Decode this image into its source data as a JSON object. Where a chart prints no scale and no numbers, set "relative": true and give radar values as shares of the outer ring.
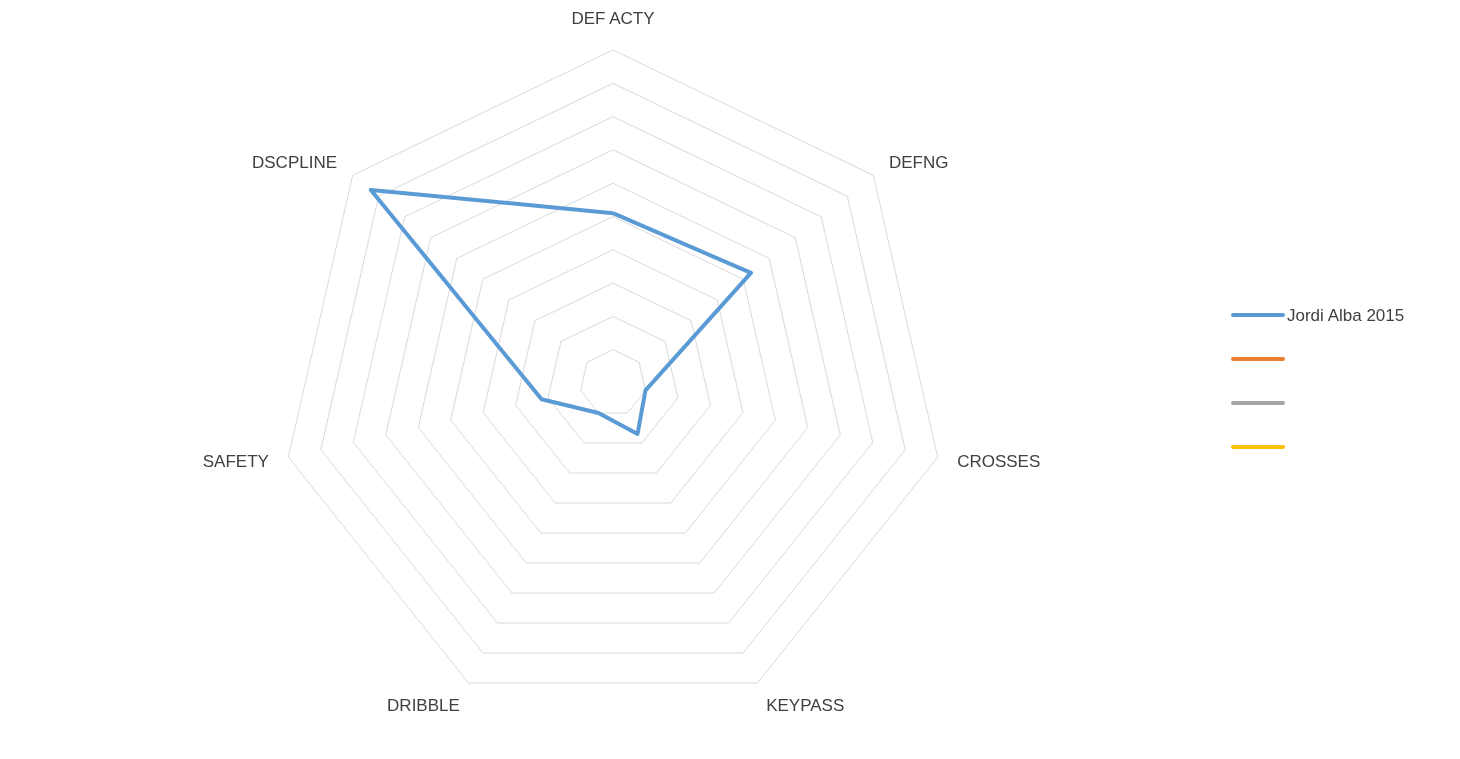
{
  "chart_data": {
    "type": "radar",
    "relative": true,
    "categories": [
      "DEF ACTY",
      "DEFNG",
      "CROSSES",
      "KEYPASS",
      "DRIBBLE",
      "SAFETY",
      "DSCPLINE"
    ],
    "series": [
      {
        "name": "Jordi Alba 2015",
        "color": "#5b9bd5",
        "values": [
          0.51,
          0.53,
          0.1,
          0.17,
          0.1,
          0.22,
          0.93
        ]
      },
      {
        "color": "#ed7d31",
        "values": [
          null,
          null,
          null,
          null,
          null,
          null,
          null
        ]
      },
      {
        "color": "#a5a5a5",
        "values": [
          null,
          null,
          null,
          null,
          null,
          null,
          null
        ]
      },
      {
        "color": "#ffc000",
        "values": [
          null,
          null,
          null,
          null,
          null,
          null,
          null
        ]
      }
    ],
    "grid": true,
    "legend": "right"
  }
}
